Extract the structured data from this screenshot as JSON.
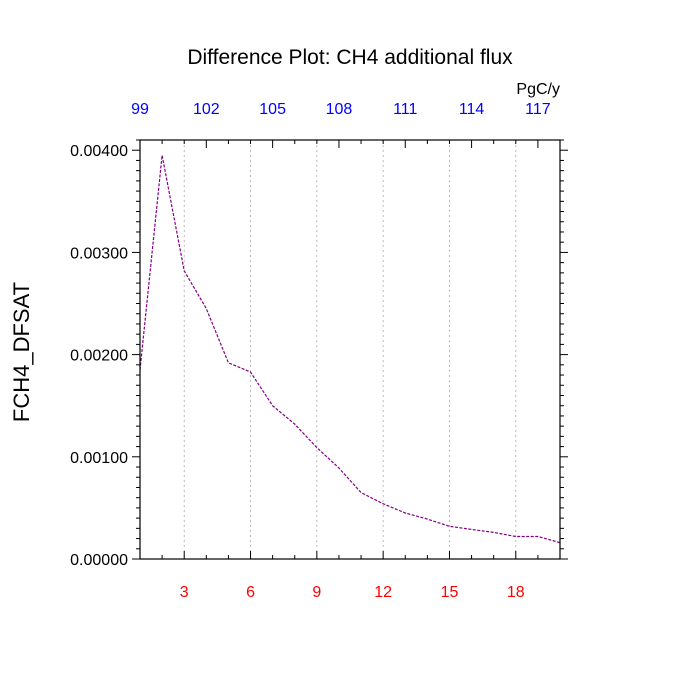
{
  "chart_data": {
    "type": "line",
    "title": "Difference Plot: CH4 additional flux",
    "ylabel": "FCH4_DFSAT",
    "xlabel": "",
    "top_axis_unit": "PgC/y",
    "xlim": [
      1,
      20
    ],
    "ylim": [
      0,
      0.0041
    ],
    "grid": "vertical-dashed",
    "colors": {
      "line": "#800080",
      "bottom_ticks": "#ff0000",
      "top_ticks": "#0000ff",
      "frame": "#000000",
      "grid": "#aaaaaa"
    },
    "x_ticks": [
      {
        "value": 3,
        "label": "3"
      },
      {
        "value": 6,
        "label": "6"
      },
      {
        "value": 9,
        "label": "9"
      },
      {
        "value": 12,
        "label": "12"
      },
      {
        "value": 15,
        "label": "15"
      },
      {
        "value": 18,
        "label": "18"
      }
    ],
    "top_ticks": [
      {
        "value": 1,
        "label": "99"
      },
      {
        "value": 4,
        "label": "102"
      },
      {
        "value": 7,
        "label": "105"
      },
      {
        "value": 10,
        "label": "108"
      },
      {
        "value": 13,
        "label": "111"
      },
      {
        "value": 16,
        "label": "114"
      },
      {
        "value": 19,
        "label": "117"
      }
    ],
    "y_ticks": [
      {
        "value": 0,
        "label": "0.00000"
      },
      {
        "value": 0.001,
        "label": "0.00100"
      },
      {
        "value": 0.002,
        "label": "0.00200"
      },
      {
        "value": 0.003,
        "label": "0.00300"
      },
      {
        "value": 0.004,
        "label": "0.00400"
      }
    ],
    "series": [
      {
        "x": [
          1,
          2,
          3,
          4,
          5,
          6,
          7,
          8,
          9,
          10,
          11,
          12,
          13,
          14,
          15,
          16,
          17,
          18,
          19,
          20
        ],
        "values": [
          0.00185,
          0.00395,
          0.00282,
          0.00245,
          0.00192,
          0.00183,
          0.0015,
          0.00132,
          0.00109,
          0.00089,
          0.00065,
          0.00054,
          0.00045,
          0.00039,
          0.00032,
          0.00029,
          0.00026,
          0.00022,
          0.00022,
          0.00016
        ]
      }
    ]
  }
}
